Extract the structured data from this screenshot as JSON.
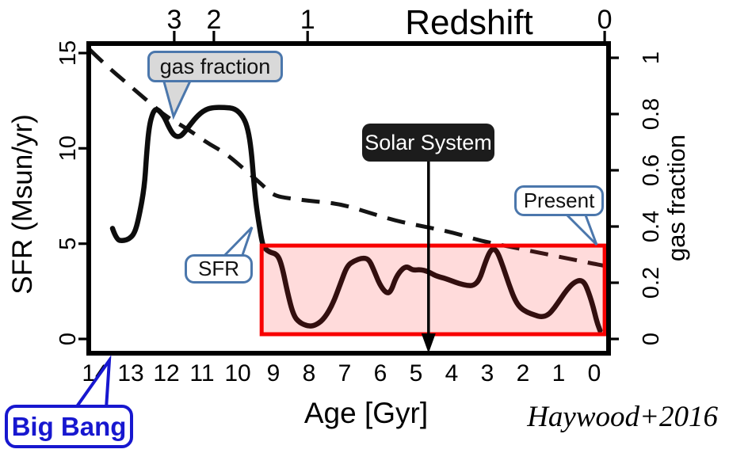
{
  "annotations": {
    "gas_fraction_callout": "gas fraction",
    "solar_system": "Solar System",
    "sfr_callout": "SFR",
    "present": "Present",
    "big_bang": "Big Bang",
    "credit": "Haywood+2016"
  },
  "colors": {
    "curve": "#0d0d0d",
    "dashed": "#141414",
    "highlight_border": "#f80000",
    "highlight_fill": "rgba(255,30,30,0.16)",
    "callout_border": "#4b77ac",
    "callout_gray_fill": "#d9d9d9",
    "dark_label_bg": "#1c1c1c",
    "big_bang_blue": "#1717cf"
  },
  "chart_data": {
    "type": "line",
    "title": "",
    "xlabel": "Age [Gyr]",
    "ylabel_left": "SFR (Msun/yr)",
    "ylabel_right": "gas fraction",
    "top_axis_title": "Redshift",
    "x_range_age": [
      14.2,
      -0.4
    ],
    "ylim_left": [
      0,
      15
    ],
    "ylim_right": [
      0,
      1
    ],
    "x_reversed": true,
    "grid": false,
    "age_ticks": [
      "14",
      "13",
      "12",
      "11",
      "10",
      "9",
      "8",
      "7",
      "6",
      "5",
      "4",
      "3",
      "2",
      "1",
      "0"
    ],
    "left_ticks": [
      "15",
      "10",
      "5",
      "0"
    ],
    "right_ticks": [
      "1",
      "0.8",
      "0.6",
      "0.4",
      "0.2",
      "0"
    ],
    "redshift_ticks": [
      {
        "label": "3",
        "age": 11.78
      },
      {
        "label": "2",
        "age": 10.67
      },
      {
        "label": "1",
        "age": 8.04
      },
      {
        "label": "0",
        "age": -0.29
      }
    ],
    "solar_system_age": 4.65,
    "highlight_region": {
      "age_from": 9.33,
      "age_to": -0.29,
      "sfr_from": 0.25,
      "sfr_to": 4.9
    },
    "series": [
      {
        "name": "SFR",
        "axis": "left",
        "style": "solid",
        "points": [
          [
            13.51,
            5.8
          ],
          [
            13.4,
            5.2
          ],
          [
            13.22,
            5.15
          ],
          [
            13.04,
            5.25
          ],
          [
            12.89,
            5.55
          ],
          [
            12.78,
            6.3
          ],
          [
            12.62,
            7.9
          ],
          [
            12.56,
            9.6
          ],
          [
            12.49,
            11.1
          ],
          [
            12.38,
            11.9
          ],
          [
            12.27,
            12.1
          ],
          [
            12.07,
            11.7
          ],
          [
            11.93,
            11.1
          ],
          [
            11.78,
            10.65
          ],
          [
            11.62,
            10.6
          ],
          [
            11.49,
            10.85
          ],
          [
            11.33,
            11.25
          ],
          [
            11.11,
            11.75
          ],
          [
            10.89,
            12.05
          ],
          [
            10.67,
            12.15
          ],
          [
            10.38,
            12.15
          ],
          [
            10.07,
            12.1
          ],
          [
            9.84,
            11.65
          ],
          [
            9.71,
            11.0
          ],
          [
            9.62,
            9.9
          ],
          [
            9.56,
            8.5
          ],
          [
            9.49,
            7.1
          ],
          [
            9.4,
            6.0
          ],
          [
            9.33,
            5.2
          ],
          [
            9.27,
            4.8
          ],
          [
            9.11,
            4.55
          ],
          [
            8.89,
            4.45
          ],
          [
            8.76,
            3.85
          ],
          [
            8.6,
            2.4
          ],
          [
            8.44,
            1.25
          ],
          [
            8.27,
            0.85
          ],
          [
            8.0,
            0.65
          ],
          [
            7.78,
            0.75
          ],
          [
            7.56,
            1.1
          ],
          [
            7.33,
            1.85
          ],
          [
            7.11,
            2.95
          ],
          [
            6.93,
            3.85
          ],
          [
            6.73,
            4.1
          ],
          [
            6.51,
            4.25
          ],
          [
            6.33,
            4.2
          ],
          [
            6.2,
            3.7
          ],
          [
            6.02,
            2.85
          ],
          [
            5.84,
            2.4
          ],
          [
            5.71,
            2.45
          ],
          [
            5.56,
            3.25
          ],
          [
            5.38,
            3.7
          ],
          [
            5.24,
            3.8
          ],
          [
            5.09,
            3.6
          ],
          [
            4.89,
            3.65
          ],
          [
            4.67,
            3.55
          ],
          [
            4.44,
            3.3
          ],
          [
            4.22,
            3.2
          ],
          [
            4.0,
            3.05
          ],
          [
            3.78,
            2.9
          ],
          [
            3.56,
            2.8
          ],
          [
            3.38,
            2.8
          ],
          [
            3.22,
            3.1
          ],
          [
            3.07,
            3.95
          ],
          [
            2.93,
            4.6
          ],
          [
            2.82,
            4.75
          ],
          [
            2.71,
            4.55
          ],
          [
            2.56,
            3.8
          ],
          [
            2.4,
            2.9
          ],
          [
            2.24,
            2.1
          ],
          [
            2.09,
            1.65
          ],
          [
            1.89,
            1.4
          ],
          [
            1.67,
            1.25
          ],
          [
            1.49,
            1.15
          ],
          [
            1.29,
            1.25
          ],
          [
            1.11,
            1.65
          ],
          [
            0.93,
            2.15
          ],
          [
            0.76,
            2.6
          ],
          [
            0.58,
            2.95
          ],
          [
            0.4,
            3.1
          ],
          [
            0.27,
            2.95
          ],
          [
            0.16,
            2.45
          ],
          [
            0.04,
            1.75
          ],
          [
            -0.07,
            0.9
          ],
          [
            -0.16,
            0.45
          ]
        ]
      },
      {
        "name": "gas fraction",
        "axis": "right",
        "style": "dashed",
        "points": [
          [
            14.16,
            1.03
          ],
          [
            13.67,
            0.97
          ],
          [
            13.11,
            0.91
          ],
          [
            12.56,
            0.85
          ],
          [
            12.0,
            0.79
          ],
          [
            11.44,
            0.75
          ],
          [
            10.89,
            0.7
          ],
          [
            10.33,
            0.66
          ],
          [
            9.78,
            0.6
          ],
          [
            9.33,
            0.55
          ],
          [
            9.0,
            0.51
          ],
          [
            8.56,
            0.5
          ],
          [
            7.89,
            0.49
          ],
          [
            7.11,
            0.48
          ],
          [
            6.33,
            0.45
          ],
          [
            5.56,
            0.42
          ],
          [
            4.78,
            0.4
          ],
          [
            4.0,
            0.38
          ],
          [
            3.22,
            0.35
          ],
          [
            2.44,
            0.33
          ],
          [
            1.67,
            0.31
          ],
          [
            0.89,
            0.29
          ],
          [
            0.11,
            0.27
          ],
          [
            -0.29,
            0.26
          ]
        ]
      }
    ]
  }
}
